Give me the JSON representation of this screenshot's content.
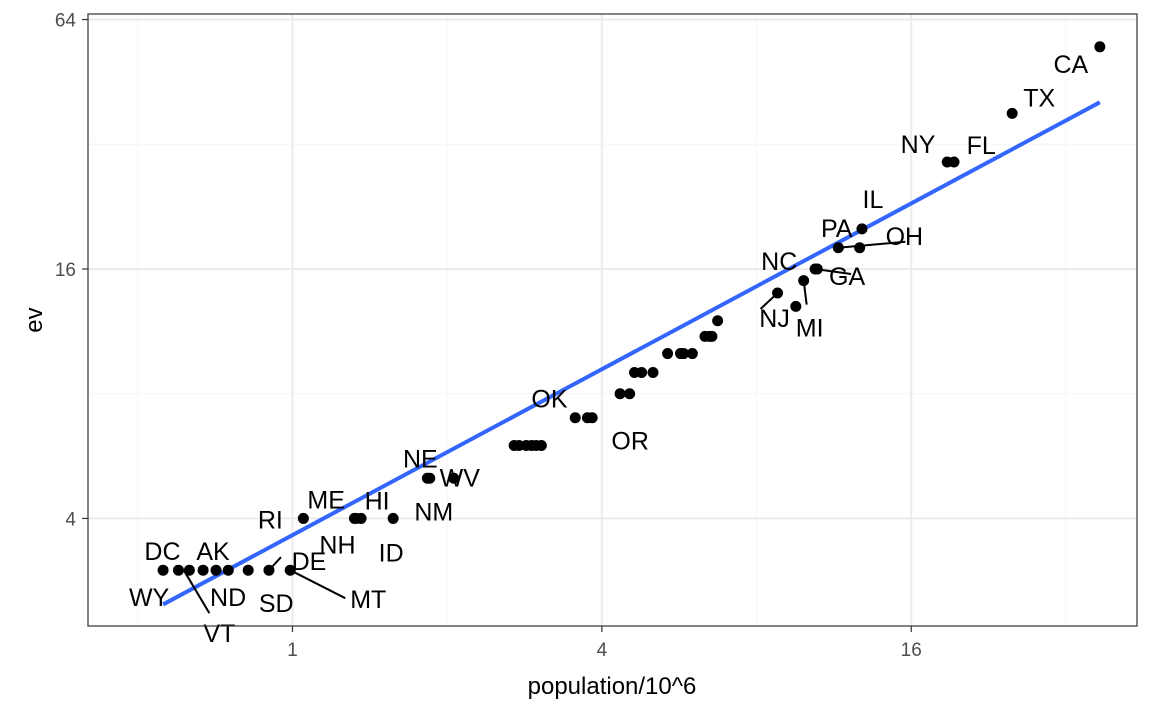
{
  "chart_data": {
    "type": "scatter",
    "xlabel": "population/10^6",
    "ylabel": "ev",
    "x_scale": "log2",
    "y_scale": "log2",
    "xlim": [
      0.4,
      44
    ],
    "ylim": [
      2.2,
      66
    ],
    "x_ticks": [
      {
        "value": 1,
        "label": "1"
      },
      {
        "value": 4,
        "label": "4"
      },
      {
        "value": 16,
        "label": "16"
      }
    ],
    "y_ticks": [
      {
        "value": 4,
        "label": "4"
      },
      {
        "value": 16,
        "label": "16"
      },
      {
        "value": 64,
        "label": "64"
      }
    ],
    "grid": true,
    "legend": "none",
    "colors": {
      "points": "#000000",
      "fit_line": "#3366FF",
      "grid_major": "#ebebeb",
      "grid_minor": "#f5f5f5",
      "panel_border": "#333333"
    },
    "points": [
      {
        "label": "DC",
        "x": 0.6,
        "y": 3
      },
      {
        "label": "WY",
        "x": 0.56,
        "y": 3
      },
      {
        "label": "VT",
        "x": 0.63,
        "y": 3
      },
      {
        "label": "ND",
        "x": 0.67,
        "y": 3
      },
      {
        "label": "AK",
        "x": 0.71,
        "y": 3
      },
      {
        "label": "SD",
        "x": 0.82,
        "y": 3
      },
      {
        "label": "DE",
        "x": 0.9,
        "y": 3
      },
      {
        "label": "MT",
        "x": 0.99,
        "y": 3
      },
      {
        "label": "",
        "x": 0.75,
        "y": 3
      },
      {
        "label": "RI",
        "x": 1.05,
        "y": 4
      },
      {
        "label": "ME",
        "x": 1.33,
        "y": 4
      },
      {
        "label": "NH",
        "x": 1.32,
        "y": 4
      },
      {
        "label": "HI",
        "x": 1.36,
        "y": 4
      },
      {
        "label": "ID",
        "x": 1.57,
        "y": 4
      },
      {
        "label": "NE",
        "x": 1.83,
        "y": 5
      },
      {
        "label": "WV",
        "x": 1.85,
        "y": 5
      },
      {
        "label": "NM",
        "x": 2.06,
        "y": 5
      },
      {
        "label": "",
        "x": 2.7,
        "y": 6
      },
      {
        "label": "",
        "x": 2.76,
        "y": 6
      },
      {
        "label": "",
        "x": 2.85,
        "y": 6
      },
      {
        "label": "",
        "x": 2.92,
        "y": 6
      },
      {
        "label": "",
        "x": 2.98,
        "y": 6
      },
      {
        "label": "",
        "x": 3.05,
        "y": 6
      },
      {
        "label": "OK",
        "x": 3.75,
        "y": 7
      },
      {
        "label": "OR",
        "x": 3.83,
        "y": 7
      },
      {
        "label": "",
        "x": 3.55,
        "y": 7
      },
      {
        "label": "",
        "x": 4.34,
        "y": 8
      },
      {
        "label": "",
        "x": 4.53,
        "y": 8
      },
      {
        "label": "",
        "x": 4.63,
        "y": 9
      },
      {
        "label": "",
        "x": 4.78,
        "y": 9
      },
      {
        "label": "",
        "x": 5.03,
        "y": 9
      },
      {
        "label": "",
        "x": 5.37,
        "y": 10
      },
      {
        "label": "",
        "x": 5.69,
        "y": 10
      },
      {
        "label": "",
        "x": 5.77,
        "y": 10
      },
      {
        "label": "",
        "x": 6.0,
        "y": 10
      },
      {
        "label": "",
        "x": 6.35,
        "y": 11
      },
      {
        "label": "",
        "x": 6.48,
        "y": 11
      },
      {
        "label": "",
        "x": 6.55,
        "y": 11
      },
      {
        "label": "",
        "x": 6.72,
        "y": 12
      },
      {
        "label": "NJ",
        "x": 8.79,
        "y": 14
      },
      {
        "label": "",
        "x": 9.54,
        "y": 13
      },
      {
        "label": "MI",
        "x": 9.88,
        "y": 15
      },
      {
        "label": "NC",
        "x": 10.5,
        "y": 16
      },
      {
        "label": "GA",
        "x": 10.4,
        "y": 16
      },
      {
        "label": "OH",
        "x": 11.54,
        "y": 18
      },
      {
        "label": "PA",
        "x": 12.7,
        "y": 18
      },
      {
        "label": "IL",
        "x": 12.83,
        "y": 20
      },
      {
        "label": "NY",
        "x": 19.38,
        "y": 29
      },
      {
        "label": "FL",
        "x": 18.8,
        "y": 29
      },
      {
        "label": "TX",
        "x": 25.15,
        "y": 38
      },
      {
        "label": "CA",
        "x": 37.25,
        "y": 55
      }
    ],
    "fit_line": {
      "x": [
        0.56,
        37.25
      ],
      "y": [
        2.48,
        40.4
      ]
    }
  }
}
